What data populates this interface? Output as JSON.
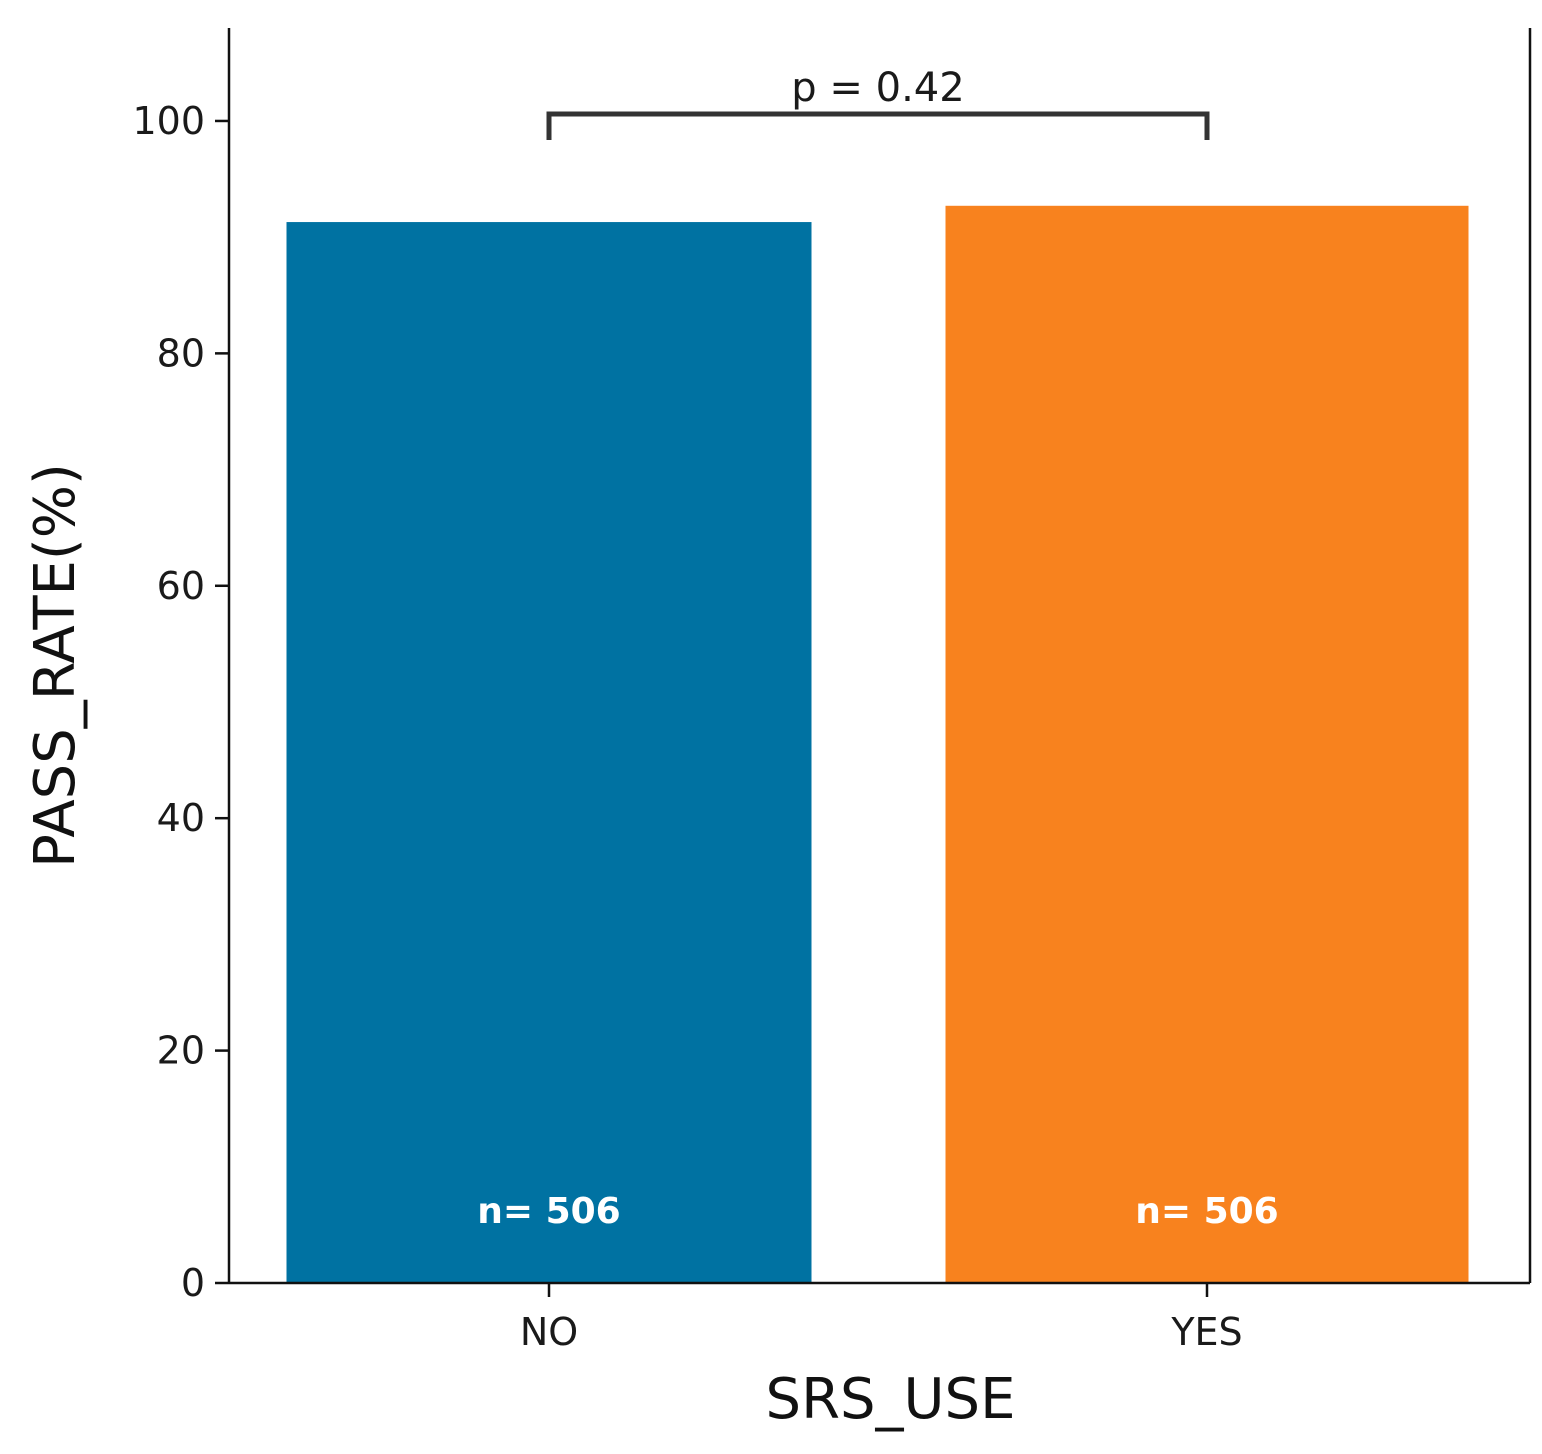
{
  "chart_data": {
    "type": "bar",
    "categories": [
      "NO",
      "YES"
    ],
    "values": [
      91.3,
      92.7
    ],
    "colors": [
      "#0072a2",
      "#f8821e"
    ],
    "count_labels": [
      "n= 506",
      "n= 506"
    ],
    "xlabel": "SRS_USE",
    "ylabel": "PASS_RATE(%)",
    "ylim": [
      0,
      108
    ],
    "yticks": [
      0,
      20,
      40,
      60,
      80,
      100
    ],
    "grid": false,
    "annotation": {
      "text": "p = 0.42",
      "from": "NO",
      "to": "YES"
    }
  }
}
